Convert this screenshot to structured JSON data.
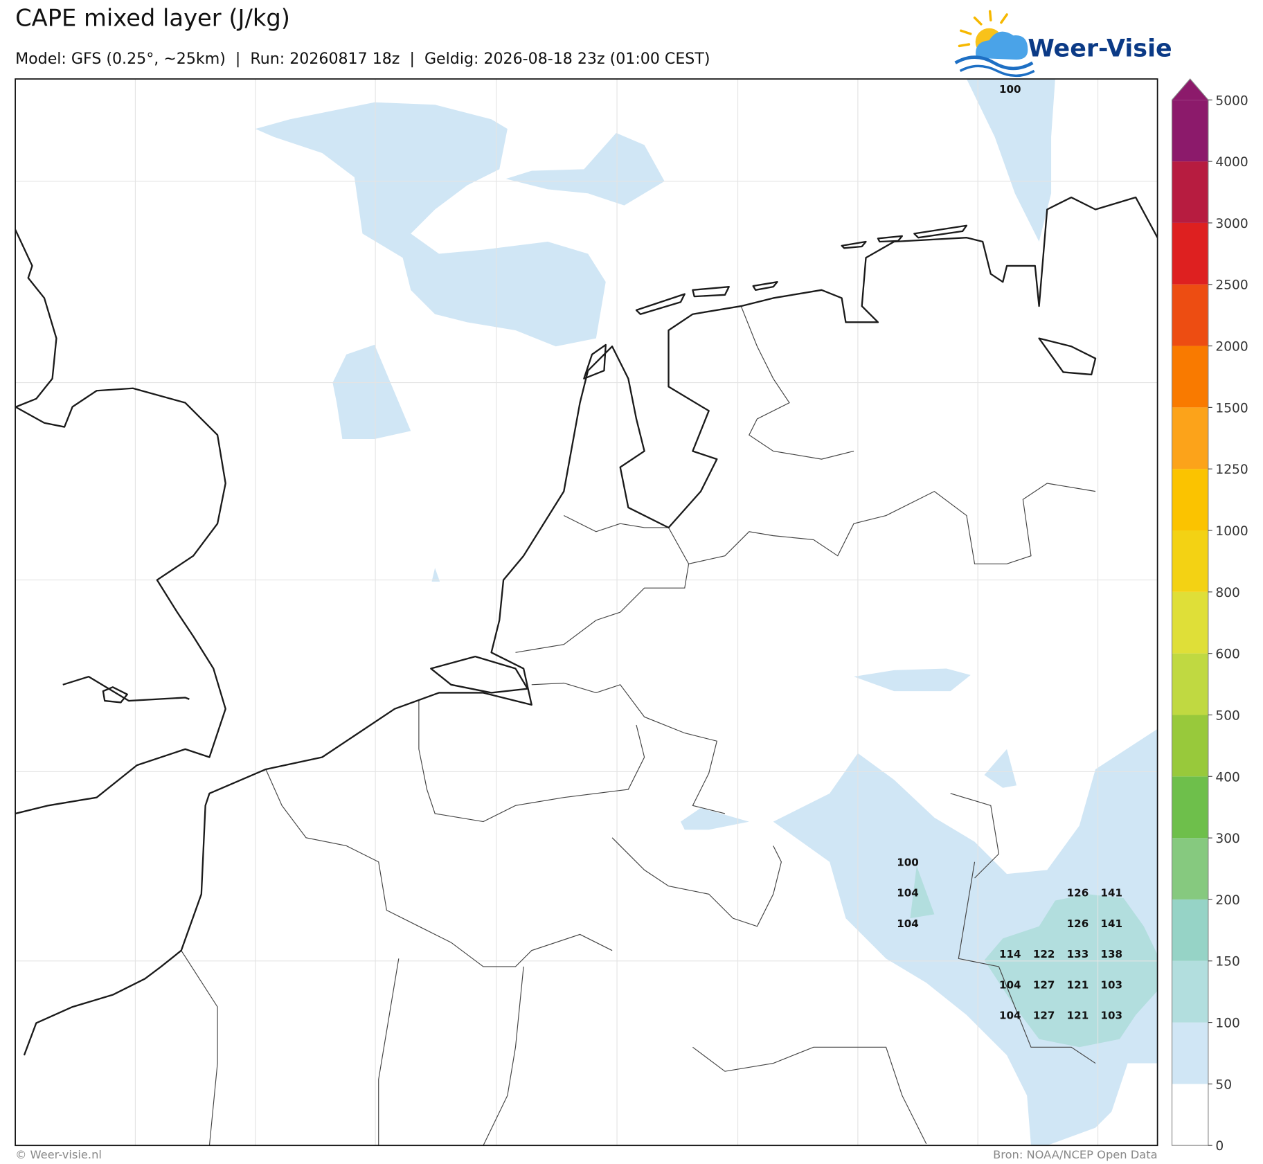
{
  "title": "CAPE mixed layer (J/kg)",
  "subtitle": "Model: GFS (0.25°, ~25km)  |  Run: 20260817 18z  |  Geldig: 2026-08-18 23z (01:00 CEST)",
  "logo": "Weer-Visie",
  "footer_left": "© Weer-visie.nl",
  "footer_right": "Bron: NOAA/NCEP Open Data",
  "colorbar": {
    "ticks": [
      0,
      50,
      100,
      150,
      200,
      300,
      400,
      500,
      600,
      800,
      1000,
      1250,
      1500,
      2000,
      2500,
      3000,
      4000,
      5000
    ],
    "colors": [
      "#ffffff",
      "#d0e6f5",
      "#b2dede",
      "#96d3c6",
      "#86c97f",
      "#6ebf4b",
      "#98c93b",
      "#c0d941",
      "#dfdf38",
      "#f3d214",
      "#fbc300",
      "#fca31a",
      "#f97a00",
      "#ed4d12",
      "#de2020",
      "#b71c40",
      "#8c1a6b"
    ]
  },
  "point_values": [
    100,
    100,
    104,
    104,
    126,
    141,
    126,
    141,
    114,
    122,
    133,
    138,
    104,
    127,
    121,
    103,
    104,
    127,
    121,
    103
  ]
}
